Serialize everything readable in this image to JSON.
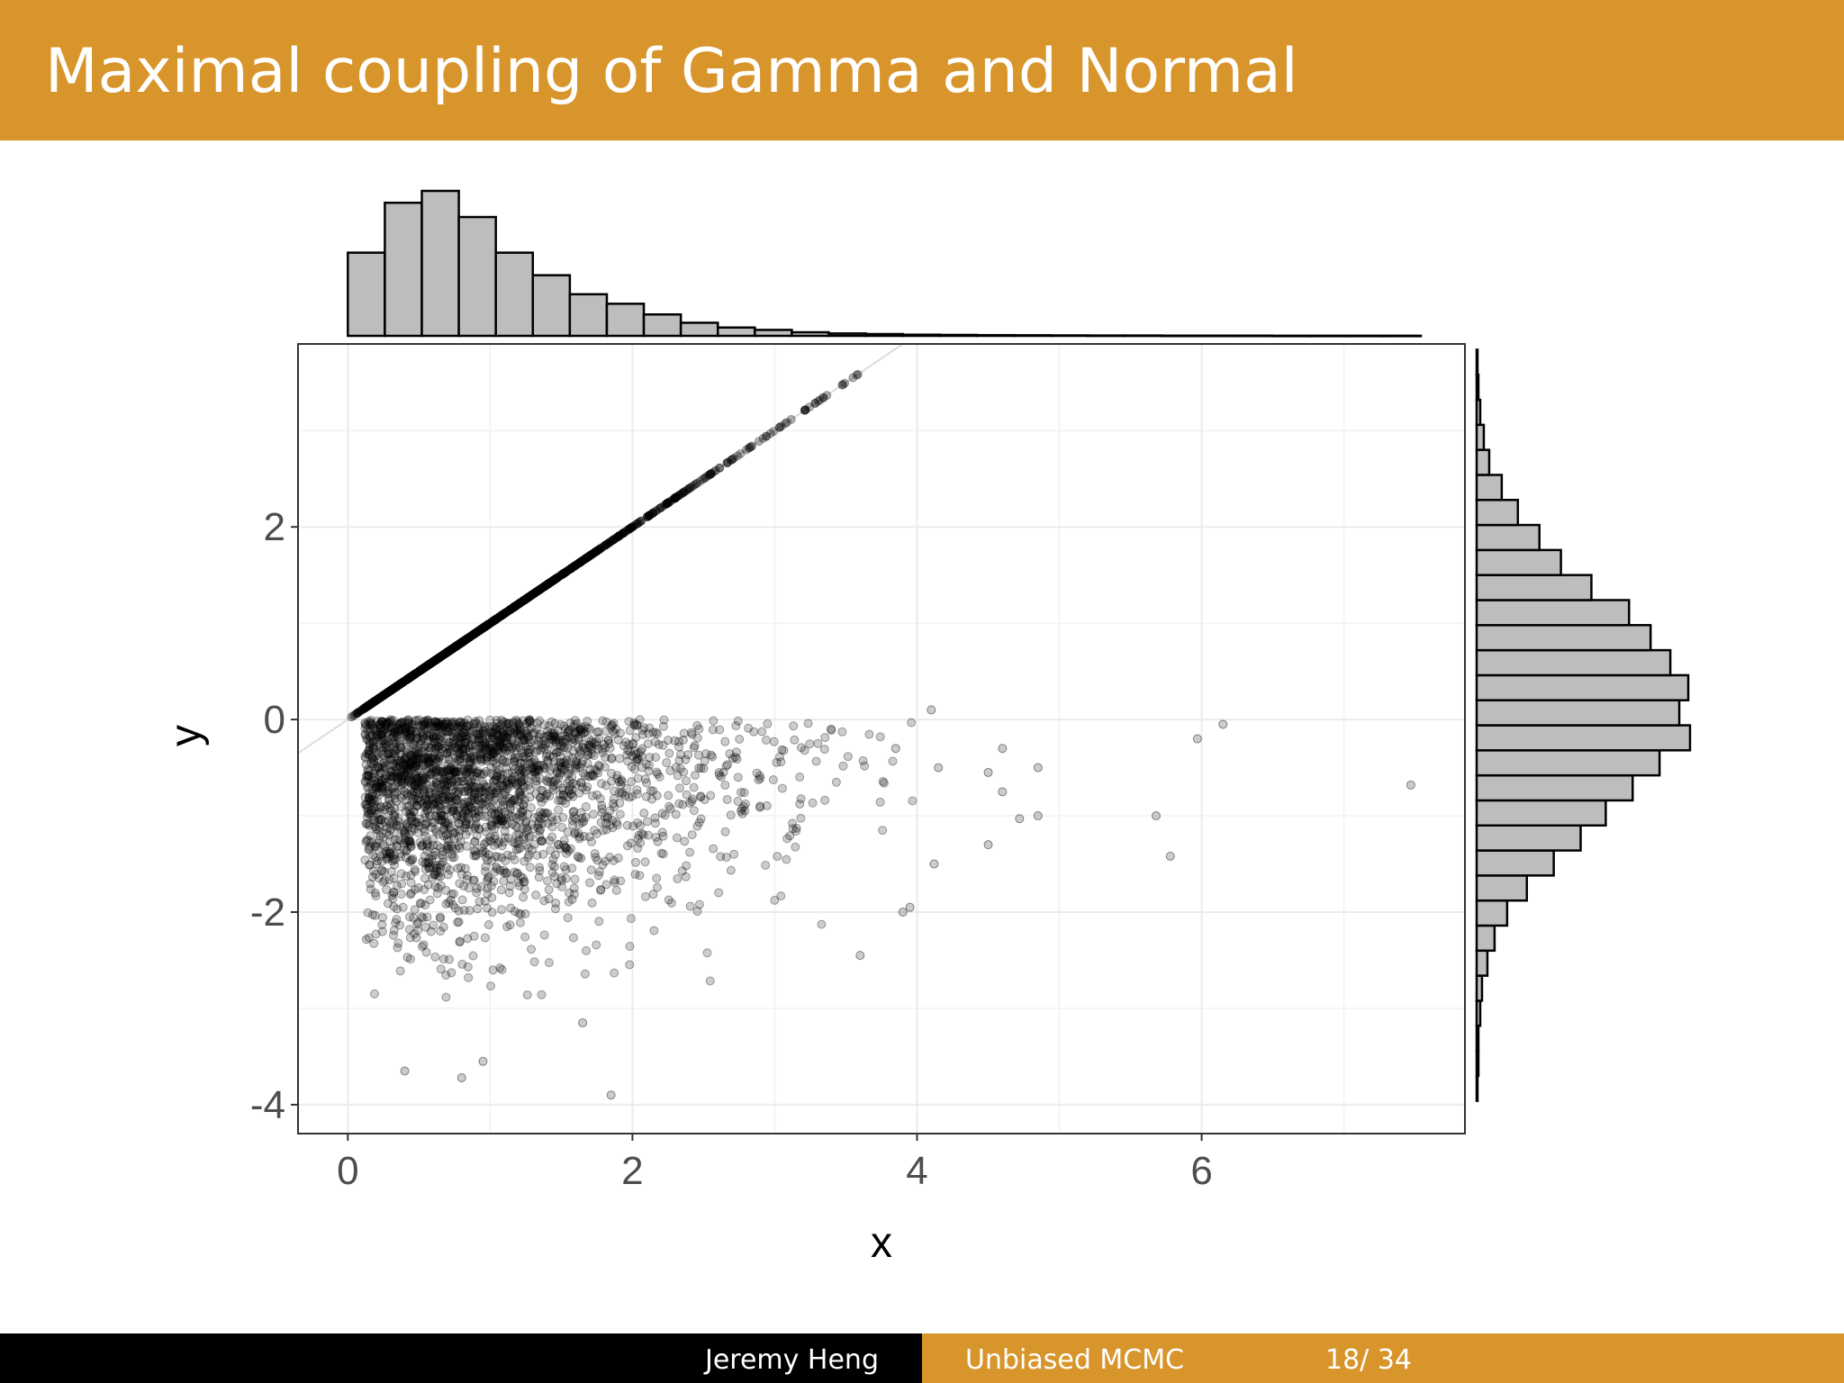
{
  "slide": {
    "title": "Maximal coupling of Gamma and Normal",
    "colors": {
      "accent": "#d8952b",
      "footer_dark": "#000000",
      "bar_fill": "#bdbdc0",
      "point_color": "#000000"
    }
  },
  "footer": {
    "author": "Jeremy Heng",
    "talk": "Unbiased MCMC",
    "page": "18/ 34"
  },
  "chart_data": {
    "type": "scatter",
    "title": "",
    "xlabel": "x",
    "ylabel": "y",
    "xlim": [
      -0.35,
      7.85
    ],
    "ylim": [
      -4.3,
      3.9
    ],
    "xticks": [
      "0",
      "2",
      "4",
      "6"
    ],
    "yticks": [
      "-4",
      "-2",
      "0",
      "2"
    ],
    "grid": true,
    "legend": "none",
    "reference_line": "y = x",
    "diagonal_points": {
      "description": "points on the line y = x",
      "x_range": [
        0,
        3.59
      ]
    },
    "cloud_outliers": [
      {
        "x": 4.1,
        "y": 0.1
      },
      {
        "x": 4.15,
        "y": -0.5
      },
      {
        "x": 4.12,
        "y": -1.5
      },
      {
        "x": 4.5,
        "y": -0.55
      },
      {
        "x": 4.5,
        "y": -1.3
      },
      {
        "x": 4.6,
        "y": -0.3
      },
      {
        "x": 4.6,
        "y": -0.75
      },
      {
        "x": 4.85,
        "y": -0.5
      },
      {
        "x": 4.85,
        "y": -1.0
      },
      {
        "x": 4.72,
        "y": -1.03
      },
      {
        "x": 5.68,
        "y": -1.0
      },
      {
        "x": 5.78,
        "y": -1.42
      },
      {
        "x": 5.97,
        "y": -0.2
      },
      {
        "x": 6.15,
        "y": -0.05
      },
      {
        "x": 7.47,
        "y": -0.68
      },
      {
        "x": 1.85,
        "y": -3.9
      },
      {
        "x": 0.4,
        "y": -3.65
      },
      {
        "x": 0.8,
        "y": -3.72
      },
      {
        "x": 0.95,
        "y": -3.55
      },
      {
        "x": 1.65,
        "y": -3.15
      },
      {
        "x": 3.95,
        "y": -1.95
      },
      {
        "x": 3.6,
        "y": -2.45
      },
      {
        "x": 3.85,
        "y": -0.3
      },
      {
        "x": 3.9,
        "y": -2.0
      }
    ],
    "marginal_x_histogram": {
      "bin_width": 0.26,
      "bin_start": 0,
      "counts": [
        70,
        112,
        122,
        100,
        70,
        51,
        35,
        27,
        18,
        11,
        7,
        5,
        3,
        2,
        1.5,
        1,
        0.8,
        0.6,
        0.5,
        0.4,
        0.3,
        0.3,
        0.2,
        0.2,
        0.2,
        0.1,
        0.1,
        0.1,
        0.1
      ]
    },
    "marginal_y_histogram": {
      "bin_width": 0.26,
      "bin_start": -3.96,
      "counts": [
        0.5,
        1,
        1,
        2,
        3,
        6,
        10,
        17,
        28,
        43,
        58,
        72,
        87,
        102,
        119,
        113,
        118,
        108,
        97,
        85,
        64,
        47,
        35,
        23,
        14,
        7,
        4,
        2,
        1,
        0.5
      ]
    }
  }
}
